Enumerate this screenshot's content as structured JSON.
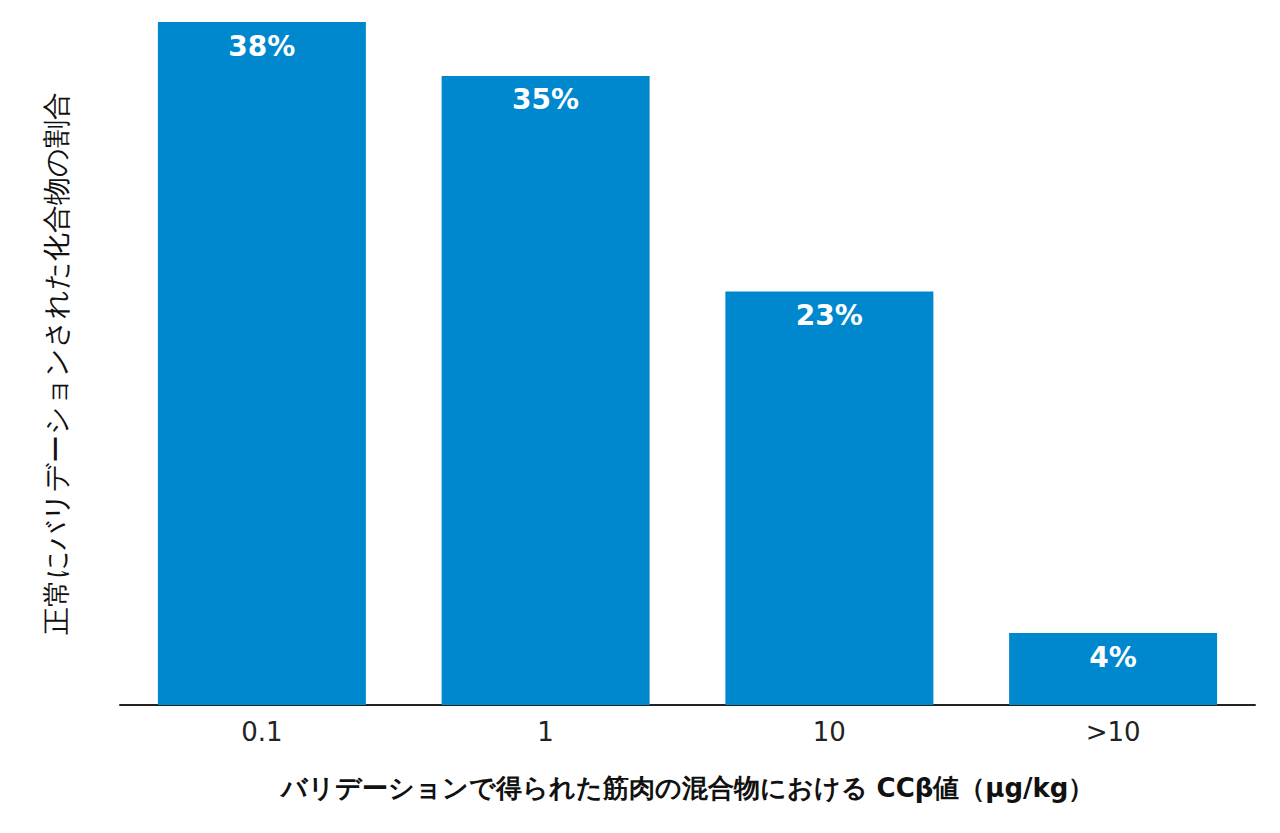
{
  "chart_data": {
    "type": "bar",
    "x_label": "バリデーションで得られた筋肉の混合物における CCβ値（μg/kg）",
    "y_label": "正常にバリデーションされた化合物の割合",
    "categories": [
      "0.1",
      "1",
      "10",
      ">10"
    ],
    "values": [
      38,
      35,
      23,
      4
    ],
    "value_labels": [
      "38%",
      "35%",
      "23%",
      "4%"
    ],
    "color": "#0088cf",
    "ylim": [
      0,
      38
    ],
    "grid": false,
    "data_labels": true,
    "tick_labels": "x"
  }
}
